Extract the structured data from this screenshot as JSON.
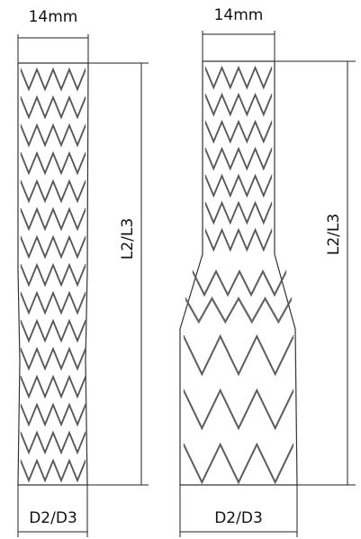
{
  "left": {
    "top_dimension": "14mm",
    "length_dimension": "L2/L3",
    "bottom_dimension": "D2/D3"
  },
  "right": {
    "top_dimension": "14mm",
    "length_dimension": "L2/L3",
    "bottom_dimension": "D2/D3"
  }
}
